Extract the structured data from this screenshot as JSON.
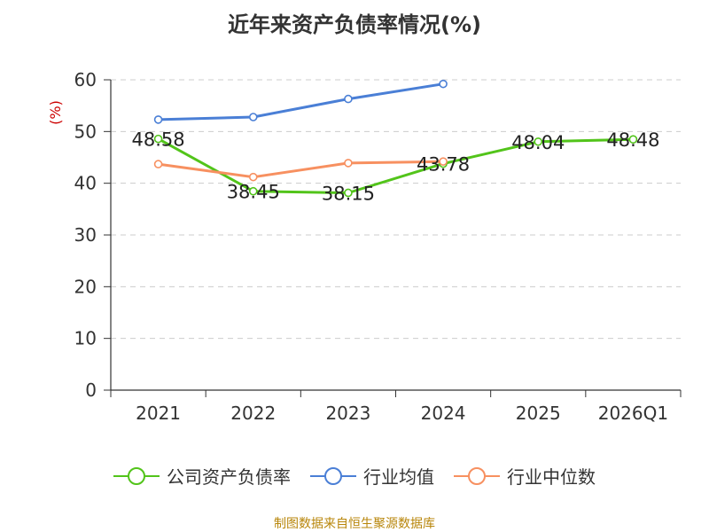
{
  "chart_data": {
    "type": "line",
    "title": "近年来资产负债率情况(%)",
    "ylabel": "(%)",
    "categories": [
      "2021",
      "2022",
      "2023",
      "2024",
      "2025",
      "2026Q1"
    ],
    "ylim": [
      0,
      60
    ],
    "yticks": [
      0,
      10,
      20,
      30,
      40,
      50,
      60
    ],
    "grid": true,
    "legend_position": "bottom",
    "series": [
      {
        "name": "公司资产负债率",
        "color": "#52c41a",
        "values": [
          48.58,
          38.45,
          38.15,
          43.78,
          48.04,
          48.48
        ],
        "labels": [
          "48.58",
          "38.45",
          "38.15",
          "43.78",
          "48.04",
          "48.48"
        ]
      },
      {
        "name": "行业均值",
        "color": "#4a7fd6",
        "values": [
          52.3,
          52.8,
          56.3,
          59.2,
          null,
          null
        ],
        "labels": []
      },
      {
        "name": "行业中位数",
        "color": "#f79060",
        "values": [
          43.7,
          41.2,
          43.9,
          44.2,
          null,
          null
        ],
        "labels": []
      }
    ]
  },
  "source": "制图数据来自恒生聚源数据库"
}
